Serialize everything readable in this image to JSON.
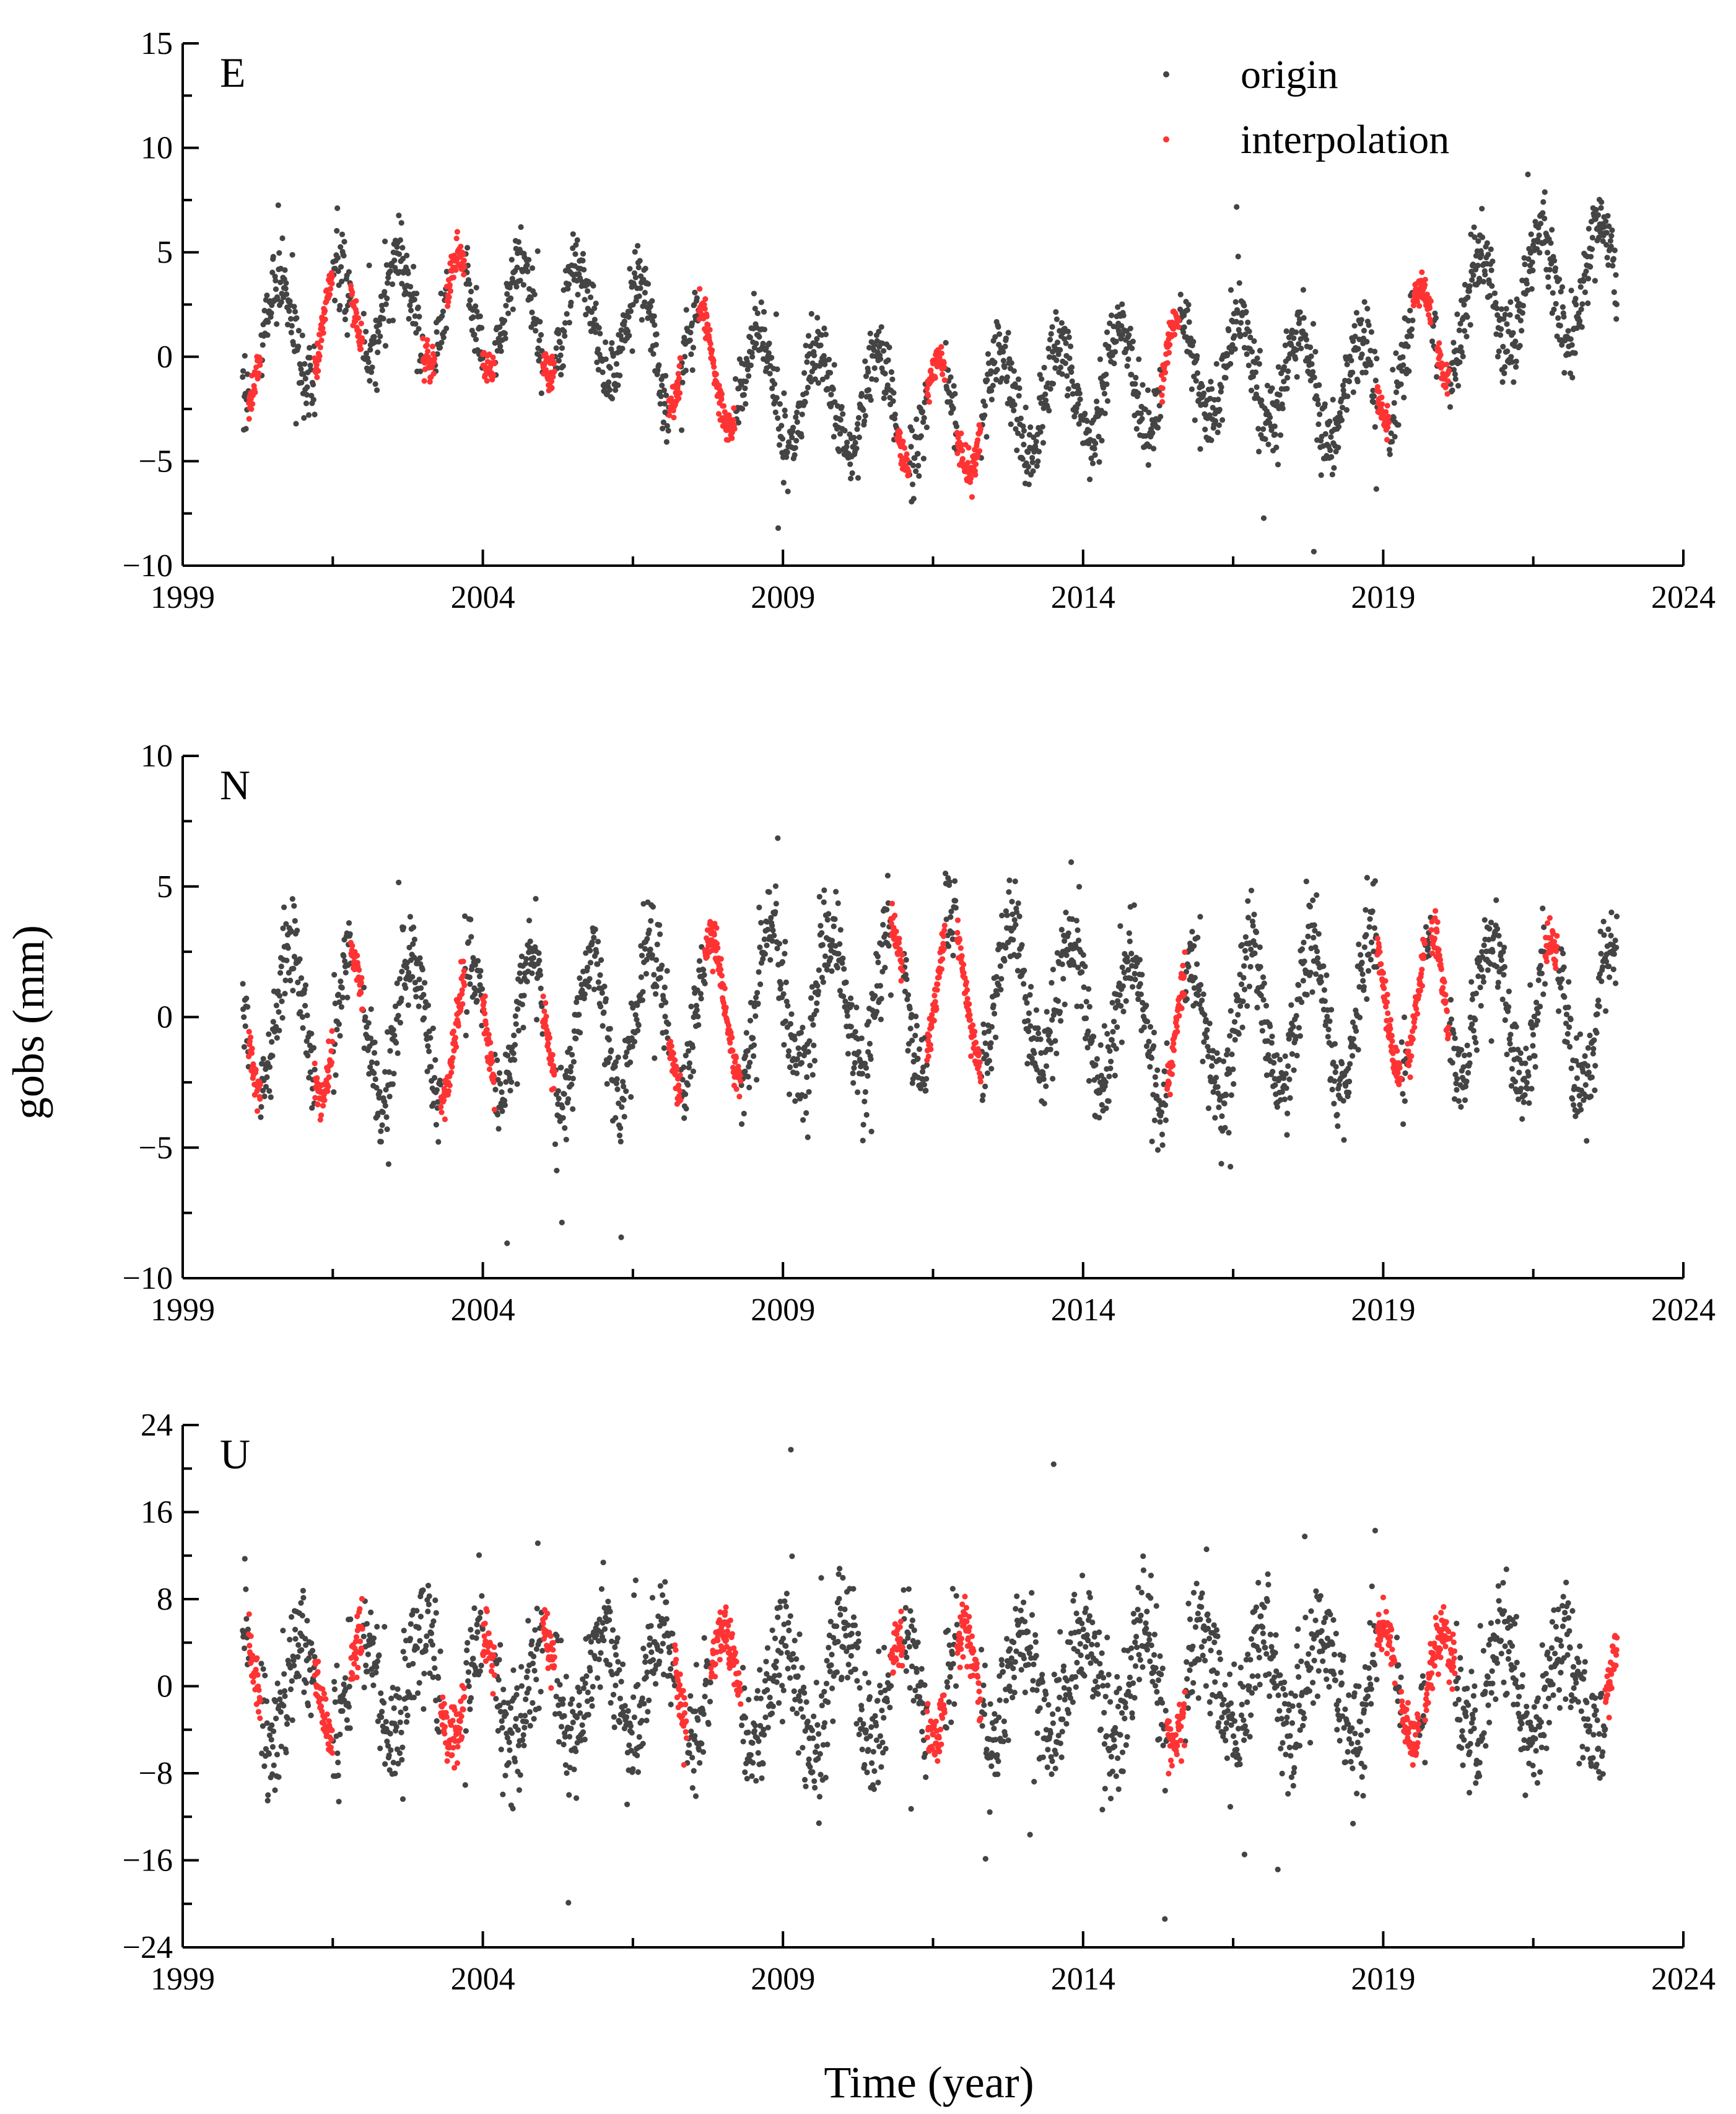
{
  "figure": {
    "ylabel": "gobs (mm)",
    "xlabel": "Time (year)"
  },
  "legend": {
    "position": "top-right of panel E",
    "entries": [
      {
        "label": "origin",
        "color": "#444444"
      },
      {
        "label": "interpolation",
        "color": "#ff3333"
      }
    ]
  },
  "chart_data": [
    {
      "type": "scatter",
      "panel_label": "E",
      "xlim": [
        1999,
        2024
      ],
      "x_ticks": [
        1999,
        2004,
        2009,
        2014,
        2019,
        2024
      ],
      "ylim": [
        -10,
        15
      ],
      "y_ticks": [
        -10,
        -5,
        0,
        5,
        10,
        15
      ],
      "y_tick_labels": [
        "−10",
        "−5",
        "0",
        "5",
        "10",
        "15"
      ],
      "data_range": [
        2000.0,
        2022.9
      ],
      "annual_amplitude": 2.6,
      "trend_knots": [
        [
          2000.0,
          0.5
        ],
        [
          2002.0,
          2.5
        ],
        [
          2004.0,
          2.0
        ],
        [
          2006.0,
          1.5
        ],
        [
          2009.0,
          -1.8
        ],
        [
          2012.0,
          -3.0
        ],
        [
          2014.0,
          -1.5
        ],
        [
          2016.0,
          -0.3
        ],
        [
          2018.5,
          -2.0
        ],
        [
          2019.5,
          0.5
        ],
        [
          2021.0,
          3.0
        ],
        [
          2022.9,
          4.0
        ]
      ],
      "noise_sd": 0.9,
      "series": [
        {
          "name": "origin",
          "color": "#444444"
        },
        {
          "name": "interpolation",
          "color": "#ff3333",
          "segments": [
            [
              2000.1,
              2000.3
            ],
            [
              2001.2,
              2001.5
            ],
            [
              2001.8,
              2002.0
            ],
            [
              2003.0,
              2003.2
            ],
            [
              2003.4,
              2003.7
            ],
            [
              2004.0,
              2004.2
            ],
            [
              2005.0,
              2005.2
            ],
            [
              2007.1,
              2007.3
            ],
            [
              2007.6,
              2008.2
            ],
            [
              2010.9,
              2011.1
            ],
            [
              2011.4,
              2011.7
            ],
            [
              2011.9,
              2012.3
            ],
            [
              2015.3,
              2015.6
            ],
            [
              2018.9,
              2019.1
            ],
            [
              2019.5,
              2019.8
            ],
            [
              2019.9,
              2020.1
            ]
          ]
        }
      ]
    },
    {
      "type": "scatter",
      "panel_label": "N",
      "xlim": [
        1999,
        2024
      ],
      "x_ticks": [
        1999,
        2004,
        2009,
        2014,
        2019,
        2024
      ],
      "ylim": [
        -10,
        10
      ],
      "y_ticks": [
        -10,
        -5,
        0,
        5,
        10
      ],
      "y_tick_labels": [
        "−10",
        "−5",
        "0",
        "5",
        "10"
      ],
      "data_range": [
        2000.0,
        2022.9
      ],
      "annual_amplitude": 2.8,
      "trend_knots": [
        [
          2000.0,
          0.0
        ],
        [
          2003.0,
          -0.5
        ],
        [
          2006.0,
          -0.3
        ],
        [
          2009.0,
          0.5
        ],
        [
          2013.0,
          1.0
        ],
        [
          2015.0,
          -0.5
        ],
        [
          2018.0,
          0.0
        ],
        [
          2019.5,
          0.5
        ],
        [
          2022.9,
          0.0
        ]
      ],
      "noise_sd": 0.9,
      "series": [
        {
          "name": "origin",
          "color": "#444444"
        },
        {
          "name": "interpolation",
          "color": "#ff3333",
          "segments": [
            [
              2000.1,
              2000.3
            ],
            [
              2001.2,
              2001.5
            ],
            [
              2001.8,
              2002.0
            ],
            [
              2003.3,
              2003.7
            ],
            [
              2004.0,
              2004.2
            ],
            [
              2005.0,
              2005.2
            ],
            [
              2007.1,
              2007.3
            ],
            [
              2007.7,
              2008.3
            ],
            [
              2010.8,
              2011.0
            ],
            [
              2011.4,
              2011.7
            ],
            [
              2011.9,
              2012.3
            ],
            [
              2015.4,
              2015.7
            ],
            [
              2018.9,
              2019.3
            ],
            [
              2019.4,
              2019.7
            ],
            [
              2019.8,
              2020.1
            ],
            [
              2021.7,
              2021.9
            ]
          ]
        }
      ]
    },
    {
      "type": "scatter",
      "panel_label": "U",
      "xlim": [
        1999,
        2024
      ],
      "x_ticks": [
        1999,
        2004,
        2009,
        2014,
        2019,
        2024
      ],
      "ylim": [
        -24,
        24
      ],
      "y_ticks": [
        -24,
        -16,
        -8,
        0,
        8,
        16,
        24
      ],
      "y_tick_labels": [
        "−24",
        "−16",
        "−8",
        "0",
        "8",
        "16",
        "24"
      ],
      "data_range": [
        2000.0,
        2022.9
      ],
      "annual_amplitude": 5.0,
      "trend_knots": [
        [
          2000.0,
          0.0
        ],
        [
          2022.9,
          0.0
        ]
      ],
      "noise_sd": 2.8,
      "series": [
        {
          "name": "origin",
          "color": "#444444"
        },
        {
          "name": "interpolation",
          "color": "#ff3333",
          "segments": [
            [
              2000.1,
              2000.3
            ],
            [
              2001.2,
              2001.5
            ],
            [
              2001.8,
              2002.0
            ],
            [
              2003.3,
              2003.7
            ],
            [
              2004.0,
              2004.2
            ],
            [
              2005.0,
              2005.2
            ],
            [
              2007.2,
              2007.4
            ],
            [
              2007.8,
              2008.3
            ],
            [
              2010.8,
              2011.0
            ],
            [
              2011.4,
              2011.7
            ],
            [
              2011.9,
              2012.3
            ],
            [
              2015.4,
              2015.7
            ],
            [
              2018.9,
              2019.2
            ],
            [
              2019.3,
              2019.6
            ],
            [
              2019.7,
              2020.2
            ],
            [
              2022.7,
              2022.9
            ]
          ]
        }
      ]
    }
  ]
}
